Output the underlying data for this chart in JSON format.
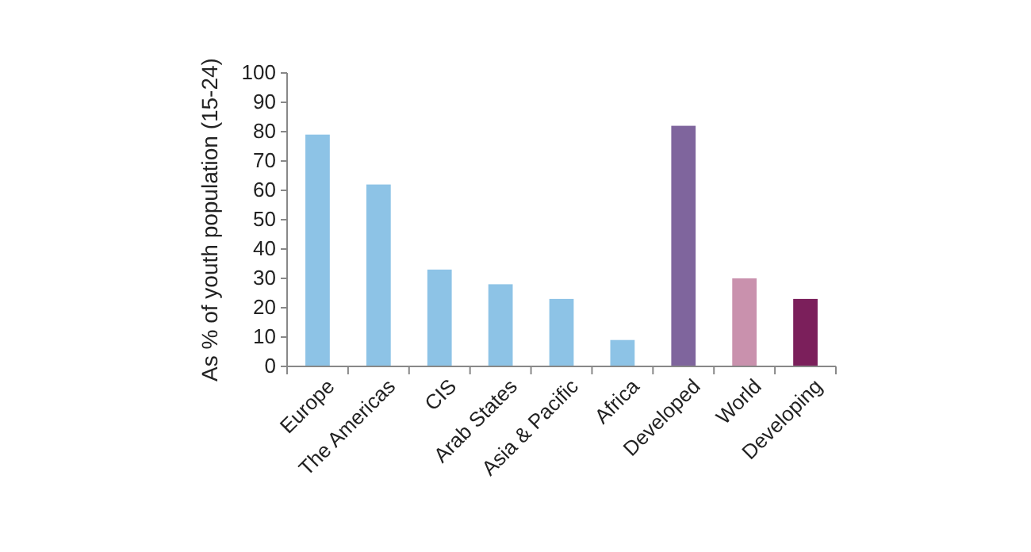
{
  "chart_data": {
    "type": "bar",
    "ylabel": "As % of youth population (15-24)",
    "categories": [
      "Europe",
      "The Americas",
      "CIS",
      "Arab States",
      "Asia & Pacific",
      "Africa",
      "Developed",
      "World",
      "Developing"
    ],
    "values": [
      79,
      62,
      33,
      28,
      23,
      9,
      82,
      30,
      23
    ],
    "colors": [
      "#8dc3e6",
      "#8dc3e6",
      "#8dc3e6",
      "#8dc3e6",
      "#8dc3e6",
      "#8dc3e6",
      "#7f659d",
      "#c991ad",
      "#7b1f5b"
    ],
    "ylim": [
      0,
      100
    ],
    "yticks": [
      0,
      10,
      20,
      30,
      40,
      50,
      60,
      70,
      80,
      90,
      100
    ],
    "grid": false
  }
}
